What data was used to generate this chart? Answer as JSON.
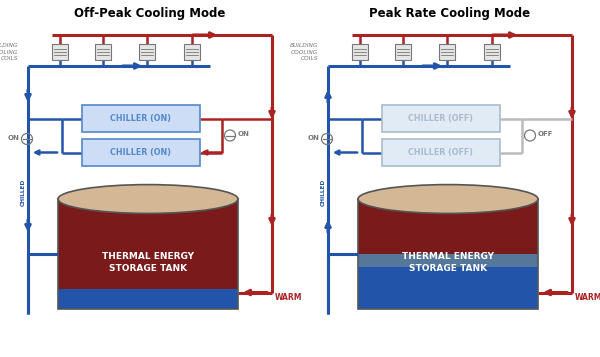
{
  "title_left": "Off-Peak Cooling Mode",
  "title_right": "Peak Rate Cooling Mode",
  "chiller_left": [
    "CHILLER (ON)",
    "CHILLER (ON)"
  ],
  "chiller_right": [
    "CHILLER (OFF)",
    "CHILLER (OFF)"
  ],
  "tank_label": "THERMAL ENERGY\nSTORAGE TANK",
  "building_label": "BUILDING\nCOOLING\nCOILS",
  "chilled_label": "CHILLED",
  "warm_label": "WARM",
  "blue_color": "#2255AA",
  "blue_light": "#B8D4F0",
  "red_color": "#AA2222",
  "tank_warm_color": "#7A1A1A",
  "tank_cool_color": "#2255AA",
  "tank_top_color": "#D4B896",
  "chiller_active_fill": "#CCDDF5",
  "chiller_active_edge": "#5588CC",
  "chiller_inactive_fill": "#E0EBF5",
  "chiller_inactive_edge": "#AABBCC",
  "gray_color": "#777777",
  "gray_light": "#BBBBBB",
  "background": "#FFFFFF",
  "lw_main": 2.2,
  "lw_pipe": 1.8
}
